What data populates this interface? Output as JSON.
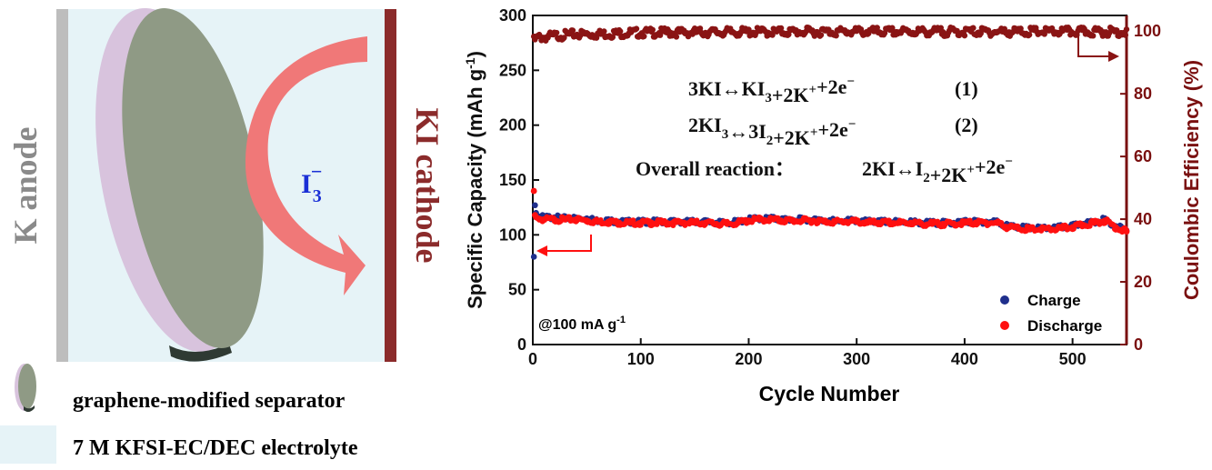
{
  "colors": {
    "electrolyte_bg": "#e6f3f7",
    "anode": "#bdbdbd",
    "cathode": "#8b2b2b",
    "separator_face": "#8f9a85",
    "separator_rim": "#d8c3dd",
    "arrow": "#f07878",
    "ion_text": "#1a2fd6",
    "left_axis": "#111111",
    "right_axis": "#7a1010",
    "charge": "#1f2f8c",
    "discharge": "#ff1010",
    "coulombic": "#8a1414"
  },
  "schematic": {
    "anode_label": "K anode",
    "cathode_label": "KI cathode",
    "ion_label": "I",
    "ion_sub": "3",
    "ion_sup": "−",
    "legend": [
      {
        "icon": "separator-icon",
        "label": "graphene-modified separator"
      },
      {
        "icon": "electrolyte-swatch-icon",
        "label": "7 M KFSI-EC/DEC electrolyte"
      }
    ]
  },
  "annotations": {
    "rate": "@100 mA g",
    "rate_sup": "-1",
    "reactions": [
      {
        "parts": [
          [
            "3KI↔KI",
            "n"
          ],
          [
            "3",
            "sub"
          ],
          [
            "+2K",
            "n"
          ],
          [
            "+",
            "sup"
          ],
          [
            "+2e",
            "n"
          ],
          [
            "−",
            "sup"
          ]
        ],
        "tag": "(1)"
      },
      {
        "parts": [
          [
            "2KI",
            "n"
          ],
          [
            "3",
            "sub"
          ],
          [
            "↔3I",
            "n"
          ],
          [
            "2",
            "sub"
          ],
          [
            "+2K",
            "n"
          ],
          [
            "+",
            "sup"
          ],
          [
            "+2e",
            "n"
          ],
          [
            "−",
            "sup"
          ]
        ],
        "tag": "(2)"
      }
    ],
    "overall_label": "Overall reaction：",
    "overall_parts": [
      [
        "2KI↔I",
        "n"
      ],
      [
        "2",
        "sub"
      ],
      [
        "+2K",
        "n"
      ],
      [
        "+",
        "sup"
      ],
      [
        "+2e",
        "n"
      ],
      [
        "−",
        "sup"
      ]
    ]
  },
  "chart_data": {
    "type": "scatter",
    "xlabel": "Cycle Number",
    "ylabel": "Specific Capacity (mAh g",
    "ylabel_sup": "-1",
    "ylabel_end": ")",
    "y2label": "Coulombic Efficiency (%)",
    "xlim": [
      0,
      550
    ],
    "ylim": [
      0,
      300
    ],
    "y2lim": [
      0,
      105
    ],
    "xticks": [
      0,
      100,
      200,
      300,
      400,
      500
    ],
    "yticks": [
      0,
      50,
      100,
      150,
      200,
      250,
      300
    ],
    "y2ticks": [
      0,
      20,
      40,
      60,
      80,
      100
    ],
    "legend_position": "bottom-right",
    "series": [
      {
        "name": "Charge",
        "axis": "left",
        "x": [
          1,
          2,
          3,
          5,
          10,
          20,
          30,
          40,
          50,
          60,
          70,
          80,
          90,
          100,
          110,
          120,
          130,
          140,
          150,
          160,
          170,
          180,
          190,
          200,
          210,
          220,
          230,
          240,
          250,
          260,
          270,
          280,
          290,
          300,
          310,
          320,
          330,
          340,
          350,
          360,
          370,
          380,
          390,
          400,
          410,
          420,
          430,
          440,
          450,
          460,
          470,
          480,
          490,
          500,
          510,
          520,
          530,
          540,
          550
        ],
        "values": [
          80,
          127,
          120,
          117,
          116,
          116,
          115,
          115,
          115,
          113,
          113,
          112,
          112,
          112,
          112,
          112,
          112,
          112,
          112,
          112,
          111,
          111,
          112,
          114,
          115,
          115,
          114,
          114,
          114,
          114,
          113,
          113,
          113,
          113,
          112,
          112,
          112,
          112,
          112,
          111,
          111,
          111,
          111,
          112,
          112,
          112,
          112,
          108,
          107,
          106,
          106,
          106,
          107,
          108,
          110,
          112,
          114,
          108,
          104
        ]
      },
      {
        "name": "Discharge",
        "axis": "left",
        "x": [
          1,
          2,
          3,
          5,
          10,
          20,
          30,
          40,
          50,
          60,
          70,
          80,
          90,
          100,
          110,
          120,
          130,
          140,
          150,
          160,
          170,
          180,
          190,
          200,
          210,
          220,
          230,
          240,
          250,
          260,
          270,
          280,
          290,
          300,
          310,
          320,
          330,
          340,
          350,
          360,
          370,
          380,
          390,
          400,
          410,
          420,
          430,
          440,
          450,
          460,
          470,
          480,
          490,
          500,
          510,
          520,
          530,
          540,
          550
        ],
        "values": [
          140,
          118,
          116,
          115,
          114,
          114,
          114,
          114,
          113,
          112,
          112,
          111,
          111,
          111,
          111,
          111,
          111,
          111,
          111,
          111,
          110,
          110,
          111,
          113,
          114,
          114,
          113,
          113,
          113,
          113,
          112,
          112,
          112,
          112,
          111,
          111,
          111,
          111,
          111,
          110,
          110,
          110,
          110,
          111,
          111,
          111,
          111,
          107,
          106,
          105,
          105,
          105,
          106,
          107,
          109,
          111,
          113,
          107,
          103
        ]
      },
      {
        "name": "",
        "axis": "right",
        "x": [
          1,
          5,
          10,
          20,
          40,
          60,
          80,
          100,
          150,
          200,
          250,
          300,
          350,
          400,
          450,
          500,
          550
        ],
        "values": [
          97,
          98,
          98,
          98.5,
          99,
          99,
          99.3,
          99.5,
          99.6,
          99.7,
          99.8,
          99.8,
          99.8,
          99.8,
          99.8,
          99.8,
          99.8
        ]
      }
    ]
  }
}
